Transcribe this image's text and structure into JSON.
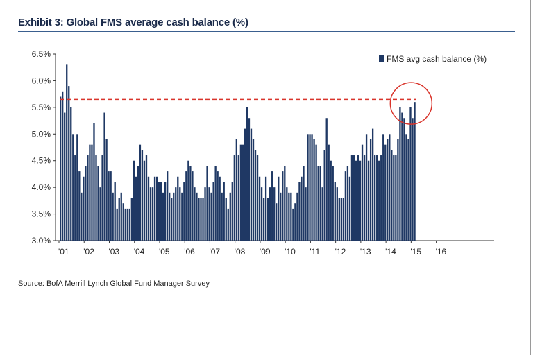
{
  "header": {
    "title": "Exhibit 3: Global FMS average cash balance (%)"
  },
  "footer": {
    "source": "Source: BofA Merrill Lynch Global Fund Manager Survey"
  },
  "colors": {
    "bar": "#1f3864",
    "reference_line": "#d9342b",
    "highlight_circle": "#d9342b",
    "axis": "#333333"
  },
  "chart_data": {
    "type": "bar",
    "legend": {
      "label": "FMS avg cash balance (%)",
      "position": "top-right"
    },
    "ylim": [
      3.0,
      6.5
    ],
    "y_ticks": [
      "3.0%",
      "3.5%",
      "4.0%",
      "4.5%",
      "5.0%",
      "5.5%",
      "6.0%",
      "6.5%"
    ],
    "x_tick_labels": [
      "'01",
      "'02",
      "'03",
      "'04",
      "'05",
      "'06",
      "'07",
      "'08",
      "'09",
      "'10",
      "'11",
      "'12",
      "'13",
      "'14",
      "'15",
      "'16"
    ],
    "xlabel": "",
    "ylabel": "",
    "grid": false,
    "reference_line": {
      "value": 5.65,
      "style": "dashed"
    },
    "highlight": {
      "description": "circled latest reading",
      "near_value": 5.6
    },
    "start": "2001-01",
    "frequency": "monthly",
    "values": [
      5.7,
      5.8,
      5.4,
      6.3,
      5.9,
      5.5,
      5.0,
      4.6,
      5.0,
      4.3,
      3.9,
      4.2,
      4.4,
      4.6,
      4.8,
      4.8,
      5.2,
      4.6,
      4.4,
      4.0,
      4.6,
      5.4,
      4.9,
      4.3,
      4.3,
      3.9,
      4.1,
      3.6,
      3.8,
      3.9,
      3.7,
      3.6,
      3.6,
      3.6,
      3.8,
      4.5,
      4.2,
      4.4,
      4.8,
      4.7,
      4.5,
      4.6,
      4.2,
      4.0,
      4.0,
      4.2,
      4.2,
      4.1,
      4.1,
      3.9,
      4.1,
      4.3,
      3.9,
      3.8,
      3.9,
      4.0,
      4.2,
      4.0,
      3.9,
      4.1,
      4.3,
      4.5,
      4.4,
      4.3,
      4.0,
      3.9,
      3.8,
      3.8,
      3.8,
      4.0,
      4.4,
      4.0,
      3.9,
      4.1,
      4.4,
      4.3,
      4.2,
      3.9,
      4.1,
      3.8,
      3.6,
      3.9,
      4.1,
      4.6,
      4.9,
      4.6,
      4.8,
      4.8,
      5.1,
      5.5,
      5.3,
      5.1,
      4.9,
      4.7,
      4.6,
      4.2,
      4.0,
      3.8,
      4.2,
      3.8,
      4.0,
      4.3,
      4.0,
      3.7,
      4.2,
      3.9,
      4.3,
      4.4,
      4.0,
      3.9,
      3.9,
      3.6,
      3.7,
      3.9,
      4.1,
      4.2,
      4.4,
      4.0,
      5.0,
      5.0,
      5.0,
      4.9,
      4.8,
      4.4,
      4.4,
      4.0,
      4.7,
      5.3,
      4.8,
      4.5,
      4.4,
      4.1,
      4.0,
      3.8,
      3.8,
      3.8,
      4.3,
      4.4,
      4.2,
      4.6,
      4.6,
      4.5,
      4.6,
      4.5,
      4.8,
      4.6,
      5.0,
      4.5,
      4.9,
      5.1,
      4.6,
      4.6,
      4.5,
      4.6,
      5.0,
      4.8,
      4.9,
      5.0,
      4.7,
      4.6,
      4.6,
      4.9,
      5.5,
      5.4,
      5.3,
      5.0,
      4.9,
      5.5,
      5.3,
      5.6
    ]
  }
}
